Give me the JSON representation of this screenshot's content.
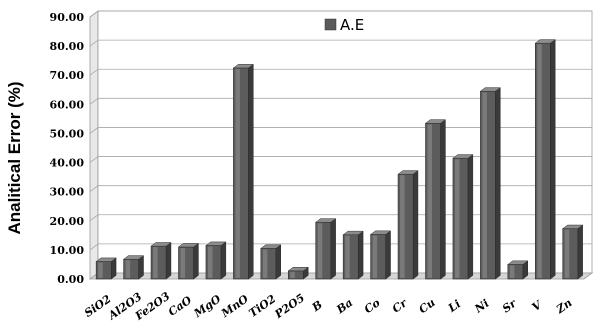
{
  "chart_data": {
    "type": "bar",
    "title": "",
    "xlabel": "",
    "ylabel": "Analitical Error (%)",
    "ylim": [
      0,
      90
    ],
    "y_ticks": [
      "0.00",
      "10.00",
      "20.00",
      "30.00",
      "40.00",
      "50.00",
      "60.00",
      "70.00",
      "80.00",
      "90.00"
    ],
    "grid": true,
    "legend_position": "top-center",
    "categories": [
      "SiO2",
      "Al2O3",
      "Fe2O3",
      "CaO",
      "MgO",
      "MnO",
      "TiO2",
      "P2O5",
      "B",
      "Ba",
      "Co",
      "Cr",
      "Cu",
      "Li",
      "Ni",
      "Sr",
      "V",
      "Zn"
    ],
    "series": [
      {
        "name": "A.E",
        "color": "#5a5a5a",
        "values": [
          6.0,
          6.8,
          11.3,
          11.0,
          11.5,
          72.5,
          10.5,
          2.8,
          19.5,
          15.2,
          15.3,
          36.0,
          53.5,
          41.5,
          64.5,
          5.0,
          81.0,
          17.3
        ]
      }
    ]
  }
}
